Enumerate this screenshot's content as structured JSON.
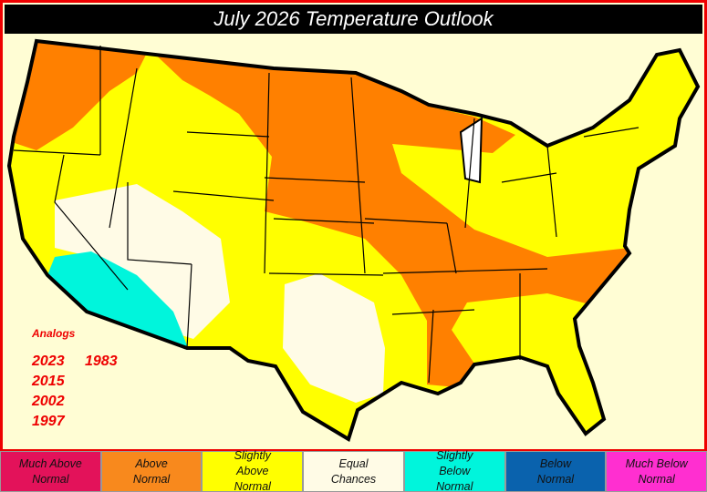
{
  "title": "July 2026 Temperature Outlook",
  "analogs": {
    "label": "Analogs",
    "years": [
      "2023",
      "1983",
      "2015",
      "2002",
      "1997"
    ]
  },
  "legend": {
    "items": [
      {
        "label": "Much Above Normal",
        "color": "#e3125a"
      },
      {
        "label": "Above Normal",
        "color": "#f8891d"
      },
      {
        "label": "Slightly Above Normal",
        "color": "#ffff00"
      },
      {
        "label": "Equal Chances",
        "color": "#fffbe6"
      },
      {
        "label": "Slightly Below Normal",
        "color": "#00f5dc"
      },
      {
        "label": "Below Normal",
        "color": "#0a62ad"
      },
      {
        "label": "Much Below Normal",
        "color": "#ff2fd0"
      }
    ]
  }
}
